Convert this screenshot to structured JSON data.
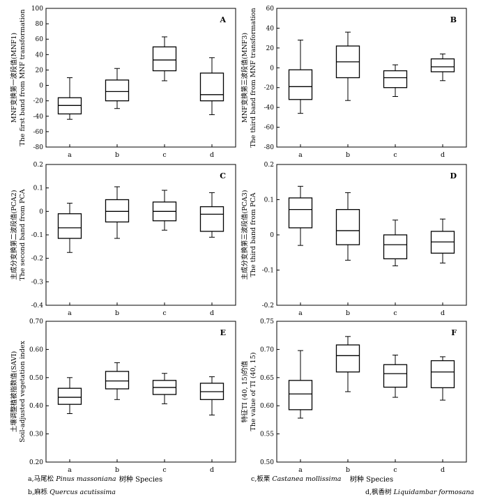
{
  "panels": [
    {
      "label": "A",
      "y_title": [
        "MNF变换第一波段值(MNF1)",
        "The first band from MNF transformation"
      ],
      "ylim": [
        -80,
        100
      ],
      "ticks": [
        -80,
        -60,
        -40,
        -20,
        0,
        20,
        40,
        60,
        80,
        100
      ],
      "categories": [
        "a",
        "b",
        "c",
        "d"
      ],
      "boxes": [
        {
          "min": -44,
          "q1": -37,
          "median": -26,
          "q3": -16,
          "max": 10
        },
        {
          "min": -30,
          "q1": -20,
          "median": -8,
          "q3": 7,
          "max": 22
        },
        {
          "min": 6,
          "q1": 19,
          "median": 33,
          "q3": 50,
          "max": 63
        },
        {
          "min": -38,
          "q1": -20,
          "median": -12,
          "q3": 16,
          "max": 36
        }
      ]
    },
    {
      "label": "B",
      "y_title": [
        "MNF变换第三波段值(MNF3)",
        "The third band from MNF transformation"
      ],
      "ylim": [
        -80,
        60
      ],
      "ticks": [
        -80,
        -60,
        -40,
        -20,
        0,
        20,
        40,
        60
      ],
      "categories": [
        "a",
        "b",
        "c",
        "d"
      ],
      "boxes": [
        {
          "min": -46,
          "q1": -32,
          "median": -19,
          "q3": -2,
          "max": 28
        },
        {
          "min": -33,
          "q1": -10,
          "median": 6,
          "q3": 22,
          "max": 36
        },
        {
          "min": -29,
          "q1": -20,
          "median": -10,
          "q3": -3,
          "max": 3
        },
        {
          "min": -13,
          "q1": -4,
          "median": 1,
          "q3": 9,
          "max": 14
        }
      ]
    },
    {
      "label": "C",
      "y_title": [
        "主成分变换第二波段值(PCA2)",
        "The second band from PCA"
      ],
      "ylim": [
        -0.4,
        0.2
      ],
      "ticks": [
        -0.4,
        -0.3,
        -0.2,
        -0.1,
        0,
        0.1,
        0.2
      ],
      "categories": [
        "a",
        "b",
        "c",
        "d"
      ],
      "boxes": [
        {
          "min": -0.175,
          "q1": -0.115,
          "median": -0.07,
          "q3": -0.01,
          "max": 0.035
        },
        {
          "min": -0.115,
          "q1": -0.045,
          "median": 0.0,
          "q3": 0.05,
          "max": 0.105
        },
        {
          "min": -0.08,
          "q1": -0.04,
          "median": 0.0,
          "q3": 0.04,
          "max": 0.09
        },
        {
          "min": -0.11,
          "q1": -0.085,
          "median": -0.012,
          "q3": 0.02,
          "max": 0.08
        }
      ]
    },
    {
      "label": "D",
      "y_title": [
        "主成分变换第三波段值(PCA3)",
        "The third band from PCA"
      ],
      "ylim": [
        -0.2,
        0.2
      ],
      "ticks": [
        -0.2,
        -0.1,
        0,
        0.1,
        0.2
      ],
      "categories": [
        "a",
        "b",
        "c",
        "d"
      ],
      "boxes": [
        {
          "min": -0.03,
          "q1": 0.02,
          "median": 0.072,
          "q3": 0.105,
          "max": 0.138
        },
        {
          "min": -0.072,
          "q1": -0.028,
          "median": 0.012,
          "q3": 0.072,
          "max": 0.12
        },
        {
          "min": -0.088,
          "q1": -0.068,
          "median": -0.028,
          "q3": 0.0,
          "max": 0.042
        },
        {
          "min": -0.08,
          "q1": -0.052,
          "median": -0.02,
          "q3": 0.01,
          "max": 0.045
        }
      ]
    },
    {
      "label": "E",
      "y_title": [
        "土壤调整植被指数值(SAVI)",
        "Soil-adjusted vegetation index"
      ],
      "ylim": [
        0.2,
        0.7
      ],
      "ticks": [
        0.2,
        0.3,
        0.4,
        0.5,
        0.6,
        0.7
      ],
      "categories": [
        "a",
        "b",
        "c",
        "d"
      ],
      "boxes": [
        {
          "min": 0.372,
          "q1": 0.405,
          "median": 0.43,
          "q3": 0.462,
          "max": 0.5
        },
        {
          "min": 0.422,
          "q1": 0.46,
          "median": 0.488,
          "q3": 0.522,
          "max": 0.553
        },
        {
          "min": 0.407,
          "q1": 0.44,
          "median": 0.465,
          "q3": 0.49,
          "max": 0.515
        },
        {
          "min": 0.367,
          "q1": 0.422,
          "median": 0.45,
          "q3": 0.48,
          "max": 0.503
        }
      ]
    },
    {
      "label": "F",
      "y_title": [
        "特征TI (40, 15)的值",
        "The value of TI (40, 15)"
      ],
      "ylim": [
        0.5,
        0.75
      ],
      "ticks": [
        0.5,
        0.55,
        0.6,
        0.65,
        0.7,
        0.75
      ],
      "categories": [
        "a",
        "b",
        "c",
        "d"
      ],
      "boxes": [
        {
          "min": 0.578,
          "q1": 0.593,
          "median": 0.621,
          "q3": 0.645,
          "max": 0.698
        },
        {
          "min": 0.625,
          "q1": 0.66,
          "median": 0.689,
          "q3": 0.708,
          "max": 0.723
        },
        {
          "min": 0.615,
          "q1": 0.633,
          "median": 0.657,
          "q3": 0.673,
          "max": 0.69
        },
        {
          "min": 0.61,
          "q1": 0.632,
          "median": 0.66,
          "q3": 0.68,
          "max": 0.687
        }
      ]
    }
  ],
  "x_title": "树种 Species",
  "legend": [
    {
      "prefix": "a,马尾松",
      "species": "Pinus massoniana"
    },
    {
      "prefix": "b,麻栎",
      "species": "Quercus acutissima"
    },
    {
      "prefix": "c,板栗",
      "species": "Castanea mollissima"
    },
    {
      "prefix": "d,枫香树",
      "species": "Liquidambar formosana"
    }
  ]
}
